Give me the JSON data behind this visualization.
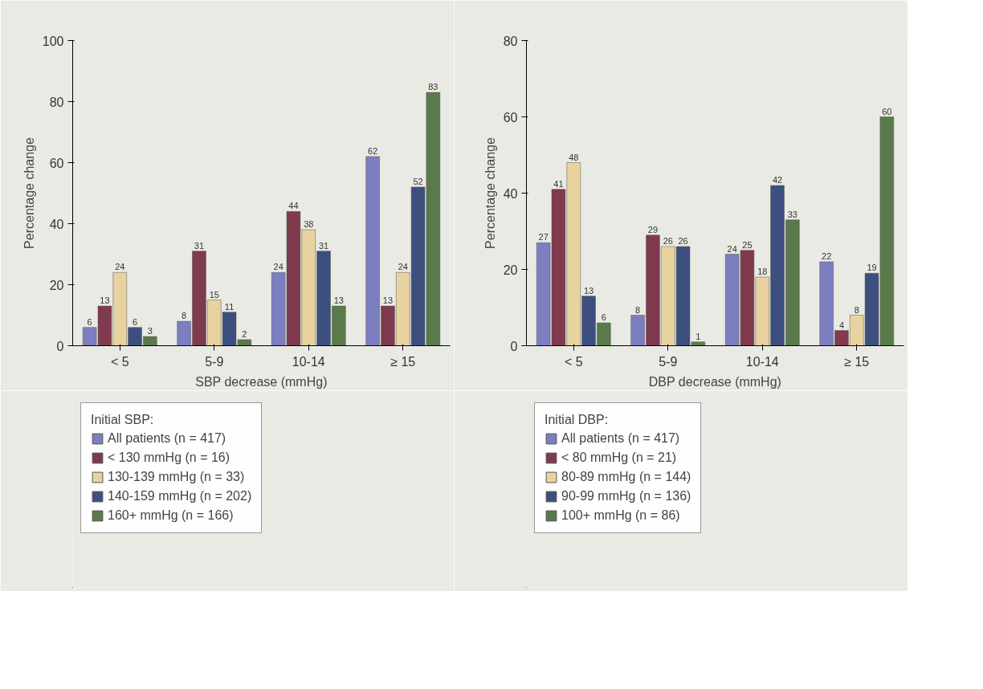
{
  "chart_data": [
    {
      "type": "bar",
      "xlabel": "SBP decrease (mmHg)",
      "ylabel": "Percentage change",
      "legend_title": "Initial SBP:",
      "categories": [
        "< 5",
        "5-9",
        "10-14",
        "≥ 15"
      ],
      "ylim": [
        0,
        100
      ],
      "yticks": [
        0,
        20,
        40,
        60,
        80,
        100
      ],
      "grid": false,
      "legend": "bottom",
      "data_labels": true,
      "series": [
        {
          "name": "All patients (n = 417)",
          "color": "#7b7fc0",
          "values": [
            6,
            8,
            24,
            62
          ]
        },
        {
          "name": "< 130 mmHg (n = 16)",
          "color": "#7f3a4e",
          "values": [
            13,
            31,
            44,
            13
          ]
        },
        {
          "name": "130-139 mmHg (n = 33)",
          "color": "#e8d3a0",
          "values": [
            24,
            15,
            38,
            24
          ]
        },
        {
          "name": "140-159 mmHg (n = 202)",
          "color": "#3d4f7f",
          "values": [
            6,
            11,
            31,
            52
          ]
        },
        {
          "name": "160+ mmHg (n = 166)",
          "color": "#5a7a4c",
          "values": [
            3,
            2,
            13,
            83
          ]
        }
      ]
    },
    {
      "type": "bar",
      "xlabel": "DBP decrease (mmHg)",
      "ylabel": "Percentage change",
      "legend_title": "Initial DBP:",
      "categories": [
        "< 5",
        "5-9",
        "10-14",
        "≥ 15"
      ],
      "ylim": [
        0,
        80
      ],
      "yticks": [
        0,
        20,
        40,
        60,
        80
      ],
      "grid": false,
      "legend": "bottom",
      "data_labels": true,
      "series": [
        {
          "name": "All patients (n = 417)",
          "color": "#7b7fc0",
          "values": [
            27,
            8,
            24,
            22
          ]
        },
        {
          "name": "< 80 mmHg (n = 21)",
          "color": "#7f3a4e",
          "values": [
            41,
            29,
            25,
            4
          ]
        },
        {
          "name": "80-89 mmHg (n = 144)",
          "color": "#e8d3a0",
          "values": [
            48,
            26,
            18,
            8
          ]
        },
        {
          "name": "90-99 mmHg (n = 136)",
          "color": "#3d4f7f",
          "values": [
            13,
            26,
            42,
            19
          ]
        },
        {
          "name": "100+ mmHg (n = 86)",
          "color": "#5a7a4c",
          "values": [
            6,
            1,
            33,
            60
          ]
        }
      ]
    }
  ]
}
